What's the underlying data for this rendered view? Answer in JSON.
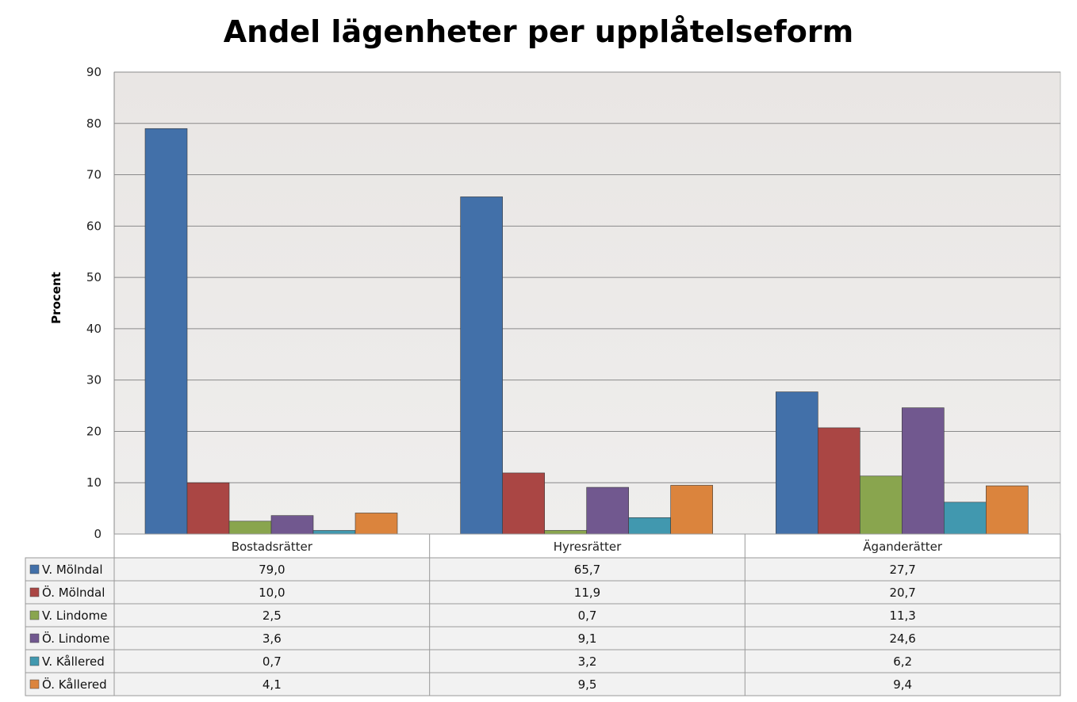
{
  "chart_data": {
    "type": "bar",
    "title": "Andel lägenheter per upplåtelseform",
    "xlabel": "",
    "ylabel": "Procent",
    "ylim": [
      0,
      90
    ],
    "yticks": [
      "0",
      "10",
      "20",
      "30",
      "40",
      "50",
      "60",
      "70",
      "80",
      "90"
    ],
    "grid": true,
    "legend": "data-table",
    "categories": [
      "Bostadsrätter",
      "Hyresrätter",
      "Äganderätter"
    ],
    "series": [
      {
        "name": "V. Mölndal",
        "color": "#4270a9",
        "values": [
          79.0,
          65.7,
          27.7
        ],
        "labels": [
          "79,0",
          "65,7",
          "27,7"
        ]
      },
      {
        "name": "Ö. Mölndal",
        "color": "#aa4644",
        "values": [
          10.0,
          11.9,
          20.7
        ],
        "labels": [
          "10,0",
          "11,9",
          "20,7"
        ]
      },
      {
        "name": "V. Lindome",
        "color": "#89a54e",
        "values": [
          2.5,
          0.7,
          11.3
        ],
        "labels": [
          "2,5",
          "0,7",
          "11,3"
        ]
      },
      {
        "name": "Ö. Lindome",
        "color": "#71588f",
        "values": [
          3.6,
          9.1,
          24.6
        ],
        "labels": [
          "3,6",
          "9,1",
          "24,6"
        ]
      },
      {
        "name": "V. Kållered",
        "color": "#4198af",
        "values": [
          0.7,
          3.2,
          6.2
        ],
        "labels": [
          "0,7",
          "3,2",
          "6,2"
        ]
      },
      {
        "name": "Ö. Kållered",
        "color": "#db843d",
        "values": [
          4.1,
          9.5,
          9.4
        ],
        "labels": [
          "4,1",
          "9,5",
          "9,4"
        ]
      }
    ]
  }
}
